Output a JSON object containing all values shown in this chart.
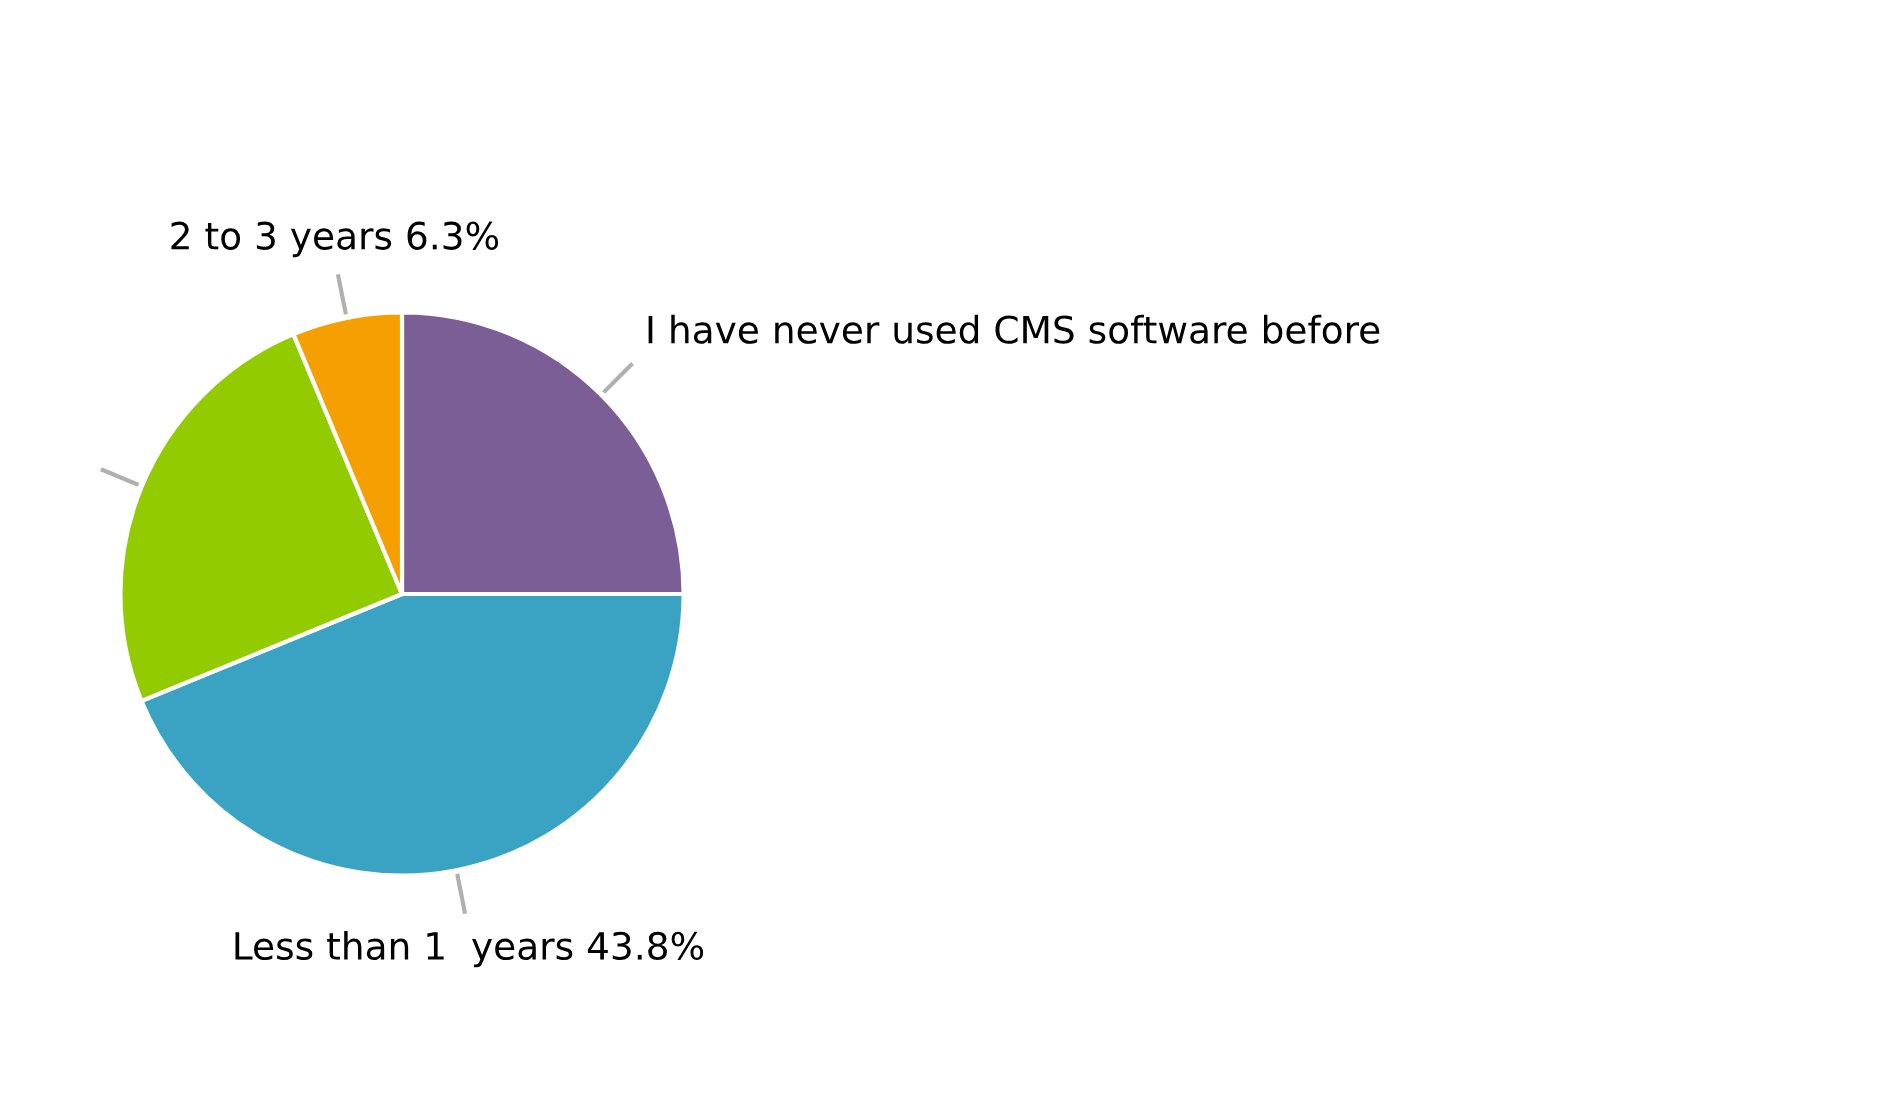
{
  "chart_data": {
    "type": "pie",
    "categories": [
      "I have never used CMS software before",
      "Less than 1  years",
      null,
      "2 to 3 years"
    ],
    "values": [
      25,
      43.8,
      24.9,
      6.3
    ],
    "colors": [
      "#7b5e96",
      "#3aa3c4",
      "#92cb00",
      "#f5a000"
    ],
    "value_labels": [
      null,
      "43.8%",
      null,
      "6.3%"
    ]
  }
}
